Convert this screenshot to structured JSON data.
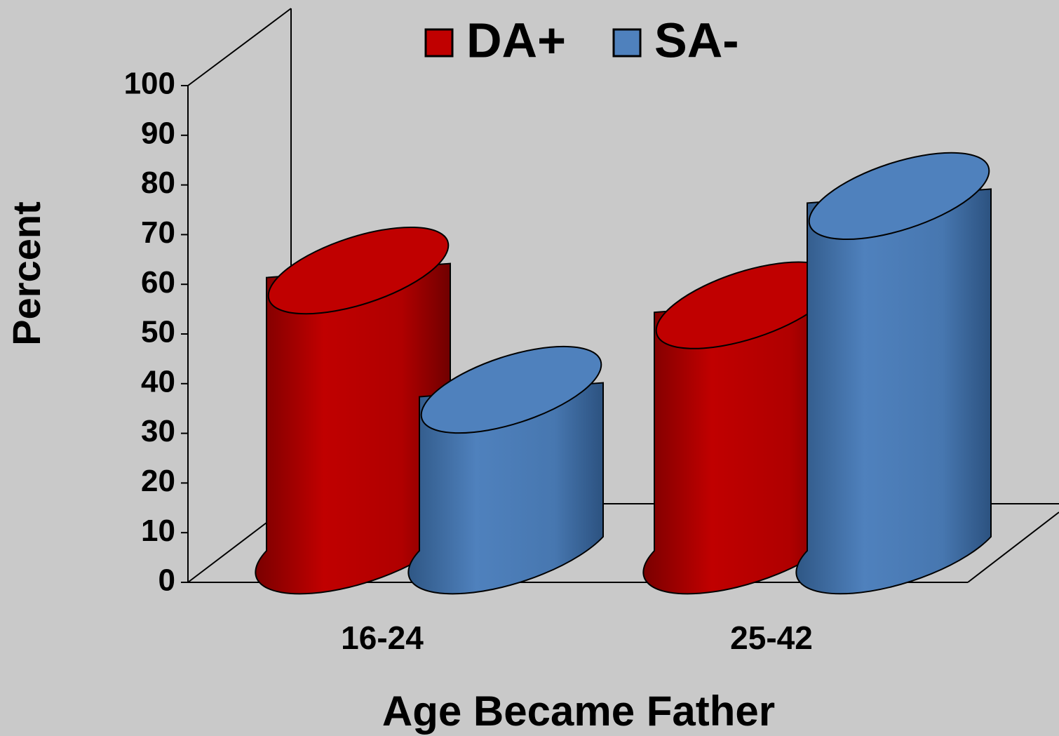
{
  "chart_data": {
    "type": "bar3d",
    "categories": [
      "16-24",
      "25-42"
    ],
    "series": [
      {
        "name": "DA+",
        "color": "#c00000",
        "values": [
          55,
          48
        ]
      },
      {
        "name": "SA-",
        "color": "#4f81bd",
        "values": [
          31,
          70
        ]
      }
    ],
    "ylim": [
      0,
      100
    ],
    "yticks": [
      0,
      10,
      20,
      30,
      40,
      50,
      60,
      70,
      80,
      90,
      100
    ],
    "ylabel": "Percent",
    "xlabel": "Age Became Father",
    "legend": "top"
  }
}
